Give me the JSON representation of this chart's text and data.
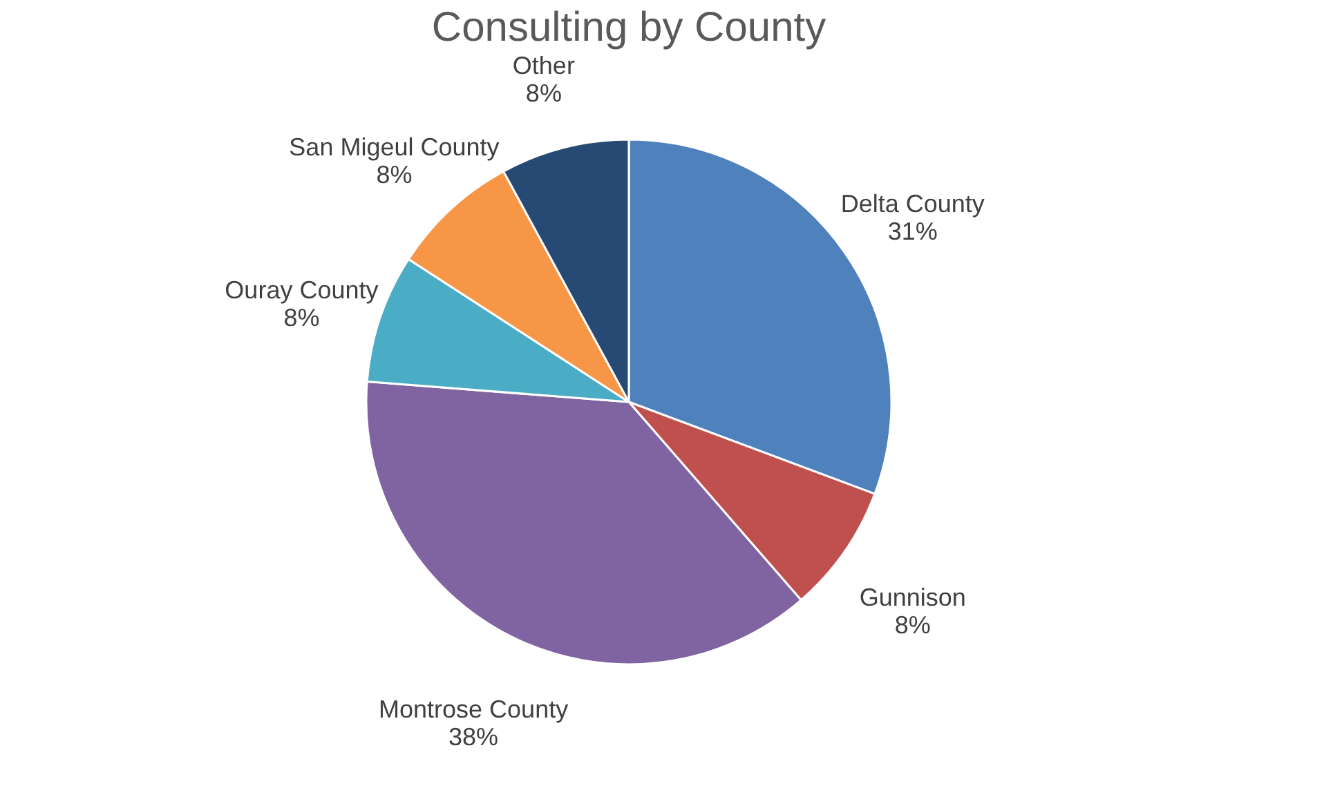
{
  "chart_data": {
    "type": "pie",
    "title": "Consulting by County",
    "categories": [
      "Delta County",
      "Gunnison",
      "Montrose County",
      "Ouray County",
      "San Migeul County",
      "Other"
    ],
    "values": [
      31,
      8,
      38,
      8,
      8,
      8
    ],
    "value_labels": [
      "31%",
      "8%",
      "38%",
      "8%",
      "8%",
      "8%"
    ],
    "colors": [
      "#4f81bd",
      "#c0504d",
      "#8064a2",
      "#4bacc6",
      "#f79646",
      "#264a73"
    ],
    "legend": false
  }
}
